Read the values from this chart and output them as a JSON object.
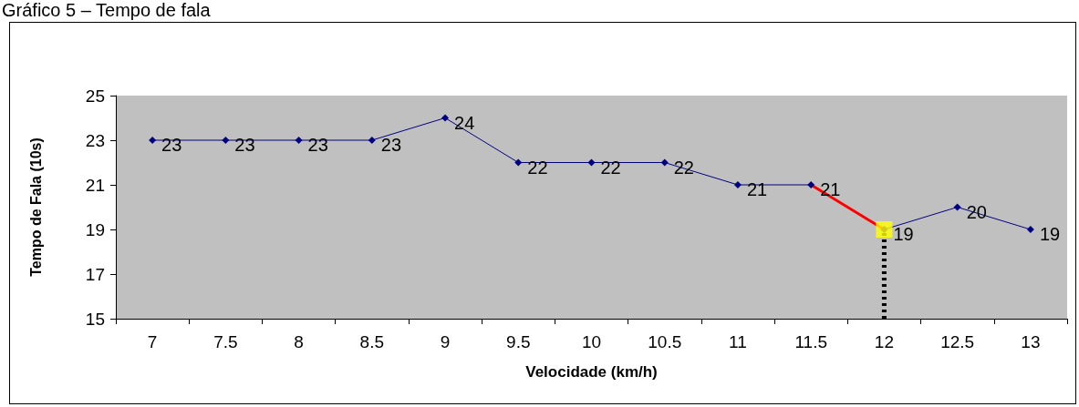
{
  "chart_data": {
    "type": "line",
    "title": "Gráfico 5 – Tempo de fala",
    "xlabel": "Velocidade (km/h)",
    "ylabel": "Tempo de Fala (10s)",
    "categories": [
      "7",
      "7.5",
      "8",
      "8.5",
      "9",
      "9.5",
      "10",
      "10.5",
      "11",
      "11.5",
      "12",
      "12.5",
      "13"
    ],
    "ylim": [
      15,
      25
    ],
    "yticks": [
      15,
      17,
      19,
      21,
      23,
      25
    ],
    "grid": false,
    "series": [
      {
        "color": "#000080",
        "marker": "diamond",
        "values": [
          23,
          23,
          23,
          23,
          24,
          22,
          22,
          22,
          21,
          21,
          19,
          20,
          19
        ],
        "value_labels": [
          "23",
          "23",
          "23",
          "23",
          "24",
          "22",
          "22",
          "22",
          "21",
          "21",
          "19",
          "20",
          "19"
        ]
      },
      {
        "color": "#ff0000",
        "marker": "none",
        "x": [
          "11.5",
          "12"
        ],
        "values": [
          21,
          19
        ]
      },
      {
        "type": "scatter",
        "color": "#ffff00",
        "marker": "square",
        "x": [
          "12"
        ],
        "values": [
          19
        ]
      },
      {
        "color": "#000000",
        "marker": "none",
        "line_style": "dotted",
        "x": [
          "12",
          "12"
        ],
        "values": [
          15,
          19
        ]
      }
    ]
  }
}
